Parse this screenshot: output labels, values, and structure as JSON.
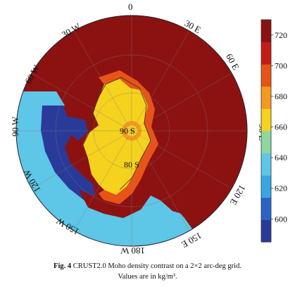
{
  "map": {
    "projection": "polar",
    "longitude_labels": [
      {
        "text": "0",
        "lon": 0
      },
      {
        "text": "30 E",
        "lon": 30
      },
      {
        "text": "60 E",
        "lon": 60
      },
      {
        "text": "90 E",
        "lon": 90
      },
      {
        "text": "120 E",
        "lon": 120
      },
      {
        "text": "150 E",
        "lon": 150
      },
      {
        "text": "180 W",
        "lon": 180
      },
      {
        "text": "150 W",
        "lon": -150
      },
      {
        "text": "120 W",
        "lon": -120
      },
      {
        "text": "90 W",
        "lon": -90
      },
      {
        "text": "60 W",
        "lon": -60
      },
      {
        "text": "30 W",
        "lon": -30
      }
    ],
    "latitude_labels": [
      "90 S",
      "80 S"
    ],
    "colors": {
      "dark_red": "#8c1212",
      "red": "#d8281c",
      "orange": "#f49a1e",
      "yellow": "#f5d21e",
      "light_blue": "#5ec6e6",
      "dark_blue": "#2a3a9a"
    }
  },
  "colorbar": {
    "ticks": [
      "720",
      "700",
      "680",
      "660",
      "640",
      "620",
      "600"
    ],
    "min": 585,
    "max": 730,
    "colors": [
      "#2a3a9a",
      "#2a62c8",
      "#37a6e2",
      "#5ec6e6",
      "#8fd6a0",
      "#f5d21e",
      "#f49a1e",
      "#e85418",
      "#c41c18",
      "#8c1212"
    ]
  },
  "caption": {
    "fig_label": "Fig. 4",
    "text_line1": "CRUST2.0 Moho density contrast on a 2×2 arc-deg grid.",
    "text_line2": "Values are in kg/m³."
  }
}
